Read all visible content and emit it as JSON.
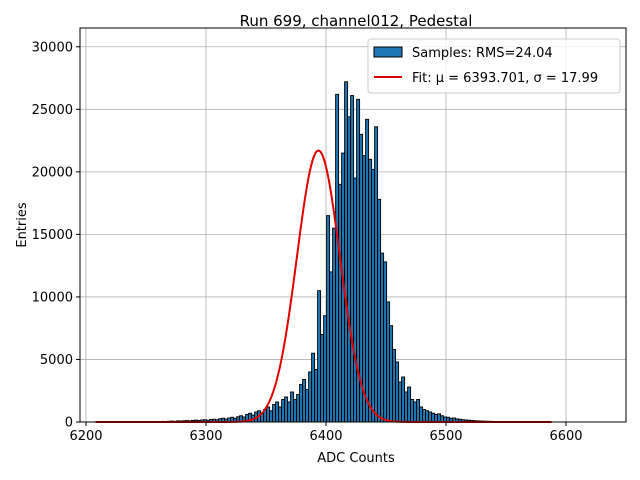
{
  "chart_data": {
    "type": "bar",
    "title": "Run 699, channel012, Pedestal",
    "xlabel": "ADC Counts",
    "ylabel": "Entries",
    "xlim": [
      6195,
      6650
    ],
    "ylim": [
      0,
      31500
    ],
    "xticks": [
      6200,
      6300,
      6400,
      6500,
      6600
    ],
    "yticks": [
      0,
      5000,
      10000,
      15000,
      20000,
      25000,
      30000
    ],
    "grid": true,
    "legend_position": "top-right",
    "histogram": {
      "name": "Samples: RMS=24.04",
      "color": "#1f77b4",
      "edgecolor": "#000000",
      "bin_edges_start": 6208,
      "bin_width": 1,
      "counts": [
        3,
        2,
        1,
        2,
        5,
        3,
        4,
        6,
        3,
        8,
        5,
        10,
        12,
        8,
        15,
        20,
        18,
        25,
        30,
        22,
        40,
        35,
        50,
        45,
        60,
        70,
        55,
        90,
        80,
        100,
        110,
        90,
        130,
        150,
        120,
        160,
        180,
        140,
        200,
        220,
        180,
        260,
        300,
        240,
        320,
        380,
        300,
        420,
        500,
        400,
        600,
        700,
        550,
        800,
        900,
        700,
        1000,
        1200,
        900,
        1400,
        1600,
        1200,
        1800,
        2000,
        1600,
        2400,
        1800,
        2200,
        3000,
        3400,
        2600,
        4000,
        5500,
        4200,
        10500,
        7000,
        8500,
        16500,
        12000,
        15500,
        26200,
        19000,
        21500,
        27200,
        24400,
        26100,
        19500,
        25800,
        23000,
        21300,
        24200,
        21000,
        20200,
        23600,
        17800,
        13500,
        12800,
        9600,
        7700,
        5800,
        4800,
        3200,
        3600,
        2400,
        2800,
        1800,
        1600,
        1800,
        1200,
        1000,
        900,
        800,
        700,
        600,
        650,
        500,
        400,
        380,
        300,
        320,
        250,
        220,
        180,
        160,
        150,
        120,
        100,
        90,
        80,
        70,
        60,
        55,
        50,
        40,
        35,
        30,
        25,
        20,
        18,
        15,
        12,
        10,
        8,
        6,
        5,
        4,
        3,
        2,
        2,
        1
      ]
    },
    "fit": {
      "name": "Fit: μ = 6393.701, σ = 17.99",
      "color": "#e00000",
      "mu": 6393.701,
      "sigma": 17.99,
      "amplitude": 21700,
      "x_range": [
        6208,
        6588
      ]
    }
  }
}
